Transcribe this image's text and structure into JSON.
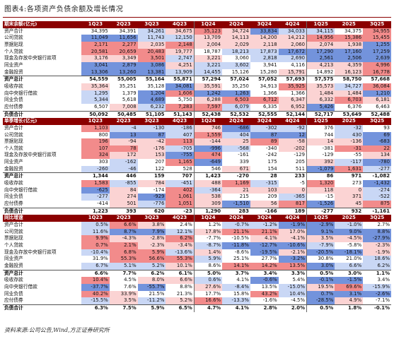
{
  "title": "图表4:各项资产负债余额及增长情况",
  "source": "资料来源:公司公告,Wind,方正证券研究所",
  "columns": [
    "2Q23",
    "3Q23",
    "4Q23",
    "1Q24",
    "2Q24",
    "3Q24",
    "4Q24",
    "1Q25",
    "2025",
    "3Q25"
  ],
  "colors": {
    "header_bg": "#8b0000",
    "red_strong": "#f28b8b",
    "red_light": "#fbd3d3",
    "blue_strong": "#7393dc",
    "blue_light": "#c9d7f5"
  },
  "sections": [
    {
      "header": "期末余额(亿元)",
      "first_col": "1Q23",
      "rows": [
        {
          "label": "资产合计",
          "values": [
            "34,395",
            "34,391",
            "34,261",
            "34,675",
            "35,123",
            "34,724",
            "33,834",
            "34,033",
            "34,115",
            "34,375",
            "34,955"
          ],
          "total": false
        },
        {
          "label": "公司贷款",
          "values": [
            "11,049",
            "11,656",
            "11,743",
            "12,150",
            "13,709",
            "14,113",
            "14,200",
            "14,212",
            "14,956",
            "15,386",
            "15,455"
          ],
          "total": false
        },
        {
          "label": "票据贴现",
          "values": [
            "2,171",
            "2,277",
            "2,035",
            "2,148",
            "2,004",
            "2,029",
            "2,118",
            "2,060",
            "2,074",
            "1,938",
            "1,255"
          ],
          "total": false
        },
        {
          "label": "个人贷款",
          "values": [
            "20,581",
            "20,659",
            "20,483",
            "19,777",
            "18,787",
            "18,213",
            "17,873",
            "17,672",
            "17,290",
            "17,160",
            "17,259"
          ],
          "total": false
        },
        {
          "label": "现金及存放中央银行款项",
          "values": [
            "3,176",
            "3,349",
            "3,501",
            "2,747",
            "3,221",
            "3,060",
            "2,818",
            "2,690",
            "2,561",
            "2,506",
            "2,639"
          ],
          "total": false
        },
        {
          "label": "同业资产",
          "values": [
            "3,041",
            "2,879",
            "3,086",
            "4,251",
            "3,221",
            "3,602",
            "3,941",
            "4,116",
            "4,213",
            "4,359",
            "4,996"
          ],
          "total": false
        },
        {
          "label": "金融投资",
          "values": [
            "13,306",
            "13,260",
            "13,381",
            "13,909",
            "14,455",
            "15,126",
            "15,280",
            "15,791",
            "14,892",
            "16,123",
            "16,778"
          ],
          "total": false
        },
        {
          "label": "资产总计",
          "values": [
            "54,559",
            "55,005",
            "55,164",
            "55,871",
            "57,294",
            "57,024",
            "57,052",
            "57,693",
            "57,575",
            "58,750",
            "57,668"
          ],
          "total": true
        },
        {
          "label": "吸收存款",
          "values": [
            "35,364",
            "35,251",
            "35,128",
            "34,081",
            "35,591",
            "35,250",
            "34,913",
            "35,925",
            "35,573",
            "34,727",
            "36,084"
          ],
          "total": false
        },
        {
          "label": "向中央银行借款",
          "values": [
            "1,295",
            "1,379",
            "1,204",
            "1,606",
            "1,242",
            "1,263",
            "1,366",
            "1,366",
            "1,484",
            "1,484",
            "1,210"
          ],
          "total": false
        },
        {
          "label": "同业负债",
          "values": [
            "5,344",
            "5,618",
            "4,689",
            "5,750",
            "6,288",
            "6,503",
            "6,712",
            "6,347",
            "6,332",
            "6,703",
            "6,181"
          ],
          "total": false
        },
        {
          "label": "应付债券",
          "values": [
            "6,507",
            "7,008",
            "6,232",
            "7,283",
            "7,597",
            "6,079",
            "6,335",
            "6,952",
            "5,426",
            "6,376",
            "6,463"
          ],
          "total": false
        },
        {
          "label": "负债合计",
          "values": [
            "50,092",
            "50,485",
            "51,105",
            "51,143",
            "52,438",
            "52,532",
            "52,555",
            "52,144",
            "52,717",
            "53,649",
            "52,488"
          ],
          "total": true
        }
      ]
    },
    {
      "header": "单季增长(亿元)",
      "first_col": "1Q23",
      "rows": [
        {
          "label": "资产合计",
          "values": [
            "1,103",
            "-4",
            "-130",
            "-186",
            "746",
            "-686",
            "-302",
            "-92",
            "376",
            "-32",
            "93"
          ],
          "total": false
        },
        {
          "label": "公司贷款",
          "values": [
            "800",
            "13",
            "87",
            "407",
            "1,559",
            "404",
            "87",
            "12",
            "744",
            "430",
            "69"
          ],
          "total": false
        },
        {
          "label": "票据贴现",
          "values": [
            "196",
            "-94",
            "-42",
            "113",
            "-144",
            "25",
            "89",
            "-58",
            "14",
            "-136",
            "-683"
          ],
          "total": false
        },
        {
          "label": "个人贷款",
          "values": [
            "107",
            "78",
            "-176",
            "-705",
            "-996",
            "-568",
            "-340",
            "-202",
            "-381",
            "-31",
            "22"
          ],
          "total": false
        },
        {
          "label": "现金及存放中央银行款项",
          "values": [
            "324",
            "172",
            "153",
            "-755",
            "474",
            "-161",
            "-242",
            "-129",
            "-129",
            "-55",
            "134"
          ],
          "total": false
        },
        {
          "label": "同业资产",
          "values": [
            "303",
            "-162",
            "207",
            "1,165",
            "-649",
            "339",
            "175",
            "205",
            "392",
            "-117",
            "-780"
          ],
          "total": false
        },
        {
          "label": "金融投资",
          "values": [
            "-260",
            "-46",
            "122",
            "528",
            "546",
            "671",
            "154",
            "511",
            "-1,079",
            "1,631",
            "-277"
          ],
          "total": false
        },
        {
          "label": "资产总计",
          "values": [
            "1,344",
            "446",
            "159",
            "707",
            "1,423",
            "-270",
            "28",
            "233",
            "86",
            "971",
            "-1,082"
          ],
          "total": true
        },
        {
          "label": "吸收存款",
          "values": [
            "1,583",
            "-855",
            "784",
            "-451",
            "488",
            "1,169",
            "-315",
            "-5",
            "1,320",
            "273",
            "-1,432"
          ],
          "total": false
        },
        {
          "label": "向中央银行借款",
          "values": [
            "-625",
            "84",
            "-174",
            "402",
            "-364",
            "21",
            "103",
            "0",
            "118",
            "0",
            "-274"
          ],
          "total": false
        },
        {
          "label": "同业负债",
          "values": [
            "-277",
            "274",
            "-929",
            "1,061",
            "538",
            "215",
            "209",
            "-365",
            "-15",
            "371",
            "-522"
          ],
          "total": false
        },
        {
          "label": "应付债券",
          "values": [
            "-414",
            "501",
            "-776",
            "1,051",
            "309",
            "-1,510",
            "56",
            "817",
            "-1,526",
            "45",
            "875"
          ],
          "total": false
        },
        {
          "label": "负债合计",
          "values": [
            "1,223",
            "393",
            "620",
            "-23",
            "1,290",
            "283",
            "-166",
            "189",
            "-277",
            "932",
            "-1,161"
          ],
          "total": true
        }
      ]
    },
    {
      "header": "同比增速",
      "first_col": "1Q23",
      "rows": [
        {
          "label": "资产合计",
          "values": [
            "0.5%",
            "6.6%",
            "3.8%",
            "2.4%",
            "1.2%",
            "-0.7%",
            "-1.2%",
            "-1.9%",
            "-2.9%",
            "-1.0%",
            "2.7%"
          ],
          "total": false
        },
        {
          "label": "公司贷款",
          "values": [
            "11.6%",
            "8.7%",
            "7.9%",
            "12.1%",
            "17.8%",
            "21.1%",
            "21.1%",
            "17.0%",
            "9.1%",
            "9.0%",
            "8.8%"
          ],
          "total": false
        },
        {
          "label": "票据贴现",
          "values": [
            "9.9%",
            "-4.3%",
            "-2.8%",
            "6.2%",
            "-7.7%",
            "-10.5%",
            "4.1%",
            "-4.1%",
            "3.5%",
            "-4.5%",
            "-27.9%"
          ],
          "total": false
        },
        {
          "label": "个人贷款",
          "values": [
            "0.7%",
            "2.1%",
            "-2.3%",
            "-3.4%",
            "-8.7%",
            "-11.8%",
            "-12.7%",
            "-10.6%",
            "-7.9%",
            "-5.8%",
            "-2.3%"
          ],
          "total": false
        },
        {
          "label": "现金及存放中央银行款项",
          "values": [
            "-10.4%",
            "6.8%",
            "5.9%",
            "-13.6%",
            "1.4%",
            "-8.6%",
            "-19.5%",
            "-2.1%",
            "-20.5%",
            "-18.1%",
            "-1.9%"
          ],
          "total": false
        },
        {
          "label": "同业资产",
          "values": [
            "31.9%",
            "55.3%",
            "56.6%",
            "55.3%",
            "5.9%",
            "25.1%",
            "27.7%",
            "-3.2%",
            "30.8%",
            "21.0%",
            "18.6%"
          ],
          "total": false
        },
        {
          "label": "金融投资",
          "values": [
            "6.7%",
            "5.1%",
            "5.2%",
            "10.1%",
            "8.6%",
            "14.1%",
            "14.2%",
            "13.5%",
            "3.0%",
            "6.6%",
            "6.2%"
          ],
          "total": false
        },
        {
          "label": "资产总计",
          "values": [
            "6.6%",
            "7.7%",
            "6.2%",
            "6.1%",
            "5.0%",
            "3.7%",
            "3.4%",
            "3.3%",
            "0.5%",
            "3.0%",
            "1.1%"
          ],
          "total": true
        },
        {
          "label": "吸收存款",
          "values": [
            "10.4%",
            "4.5%",
            "8.0%",
            "6.6%",
            "0.6%",
            "4.1%",
            "-0.6%",
            "5.4%",
            "-0.1%",
            "-1.5%",
            "3.4%"
          ],
          "total": false
        },
        {
          "label": "向中央银行借款",
          "values": [
            "-37.7%",
            "7.6%",
            "-55.7%",
            "8.8%",
            "27.6%",
            "-8.4%",
            "13.5%",
            "-15.0%",
            "19.5%",
            "69.6%",
            "-15.9%"
          ],
          "total": false
        },
        {
          "label": "同业负债",
          "values": [
            "40.2%",
            "33.9%",
            "21.5%",
            "21.3%",
            "17.7%",
            "15.8%",
            "43.2%",
            "10.4%",
            "0.7%",
            "3.1%",
            "-2.6%"
          ],
          "total": false
        },
        {
          "label": "应付债券",
          "values": [
            "-15.5%",
            "3.5%",
            "-11.2%",
            "5.2%",
            "16.6%",
            "-13.3%",
            "-1.6%",
            "-4.5%",
            "-28.5%",
            "4.9%",
            "-7.1%"
          ],
          "total": false
        },
        {
          "label": "负债合计",
          "values": [
            "6.3%",
            "7.5%",
            "5.9%",
            "6.5%",
            "4.7%",
            "4.1%",
            "2.8%",
            "2.0%",
            "0.5%",
            "1.8%",
            "-0.1%"
          ],
          "total": true
        }
      ]
    }
  ]
}
